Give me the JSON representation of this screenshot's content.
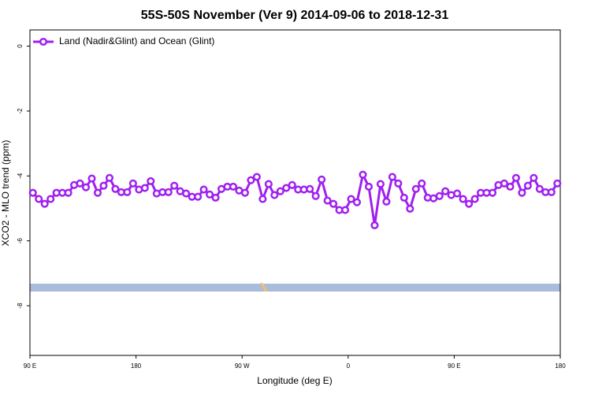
{
  "chart_data": {
    "type": "line",
    "title": "55S-50S November (Ver 9)   2014-09-06 to 2018-12-31",
    "xlabel": "Longitude (deg E)",
    "ylabel": "XCO2 - MLO trend (ppm)",
    "x": [
      92.5,
      97.5,
      102.5,
      107.5,
      112.5,
      117.5,
      122.5,
      127.5,
      132.5,
      137.5,
      142.5,
      147.5,
      152.5,
      157.5,
      162.5,
      167.5,
      172.5,
      177.5,
      182.5,
      187.5,
      192.5,
      197.5,
      202.5,
      207.5,
      212.5,
      217.5,
      222.5,
      227.5,
      232.5,
      237.5,
      242.5,
      247.5,
      252.5,
      257.5,
      262.5,
      267.5,
      272.5,
      277.5,
      282.5,
      287.5,
      292.5,
      297.5,
      302.5,
      307.5,
      312.5,
      317.5,
      322.5,
      327.5,
      332.5,
      337.5,
      342.5,
      347.5,
      352.5,
      357.5,
      362.5,
      367.5,
      372.5,
      377.5,
      382.5,
      387.5,
      392.5,
      397.5,
      402.5,
      407.5,
      412.5,
      417.5,
      422.5,
      427.5,
      432.5,
      437.5,
      442.5,
      447.5,
      452.5,
      457.5,
      462.5,
      467.5,
      472.5,
      477.5,
      482.5,
      487.5,
      492.5,
      497.5,
      502.5,
      507.5,
      512.5,
      517.5,
      522.5,
      527.5,
      532.5,
      537.5
    ],
    "series": [
      {
        "name": "Land (Nadir&Glint) and Ocean (Glint)",
        "color": "#a020f0",
        "values": [
          -4.52,
          -4.71,
          -4.86,
          -4.71,
          -4.52,
          -4.52,
          -4.52,
          -4.28,
          -4.23,
          -4.35,
          -4.08,
          -4.52,
          -4.3,
          -4.06,
          -4.4,
          -4.5,
          -4.5,
          -4.23,
          -4.42,
          -4.37,
          -4.16,
          -4.54,
          -4.5,
          -4.5,
          -4.3,
          -4.47,
          -4.54,
          -4.64,
          -4.64,
          -4.42,
          -4.57,
          -4.67,
          -4.4,
          -4.33,
          -4.33,
          -4.45,
          -4.52,
          -4.13,
          -4.03,
          -4.71,
          -4.25,
          -4.59,
          -4.47,
          -4.37,
          -4.28,
          -4.42,
          -4.42,
          -4.4,
          -4.62,
          -4.11,
          -4.76,
          -4.86,
          -5.05,
          -5.05,
          -4.71,
          -4.81,
          -3.96,
          -4.33,
          -5.52,
          -4.25,
          -4.79,
          -4.03,
          -4.23,
          -4.67,
          -5.01,
          -4.4,
          -4.23,
          -4.67,
          -4.69,
          -4.62,
          -4.47,
          -4.59,
          -4.54,
          -4.71,
          -4.86,
          -4.71,
          -4.52,
          -4.52,
          -4.52,
          -4.28,
          -4.23,
          -4.33,
          -4.06,
          -4.52,
          -4.3,
          -4.06,
          -4.4,
          -4.5,
          -4.5,
          -4.23
        ]
      }
    ],
    "xlim": [
      90,
      540
    ],
    "xticks": [
      {
        "value": 90,
        "label": "90 E"
      },
      {
        "value": 180,
        "label": "180"
      },
      {
        "value": 270,
        "label": "90 W"
      },
      {
        "value": 360,
        "label": "0"
      },
      {
        "value": 450,
        "label": "90 E"
      },
      {
        "value": 540,
        "label": "180"
      }
    ],
    "ylim": [
      -9.53,
      0.5
    ],
    "yticks": [
      0,
      -2,
      -4,
      -6,
      -8
    ],
    "legend": "top-left",
    "grid": false
  }
}
